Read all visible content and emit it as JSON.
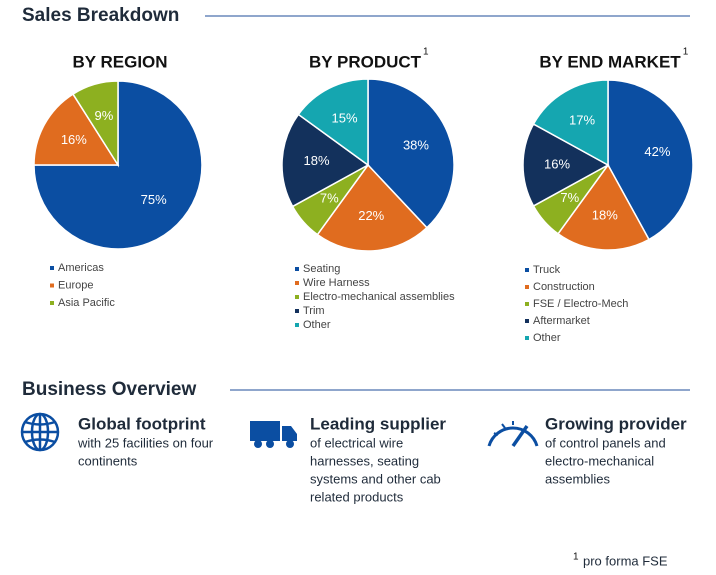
{
  "header": {
    "title": "Sales Breakdown"
  },
  "chart_data": [
    {
      "type": "pie",
      "title": "BY REGION",
      "categories": [
        "Americas",
        "Europe",
        "Asia Pacific"
      ],
      "values": [
        75,
        16,
        9
      ],
      "value_labels": [
        "75%",
        "16%",
        "9%"
      ],
      "colors": [
        "#0b4ea2",
        "#e06c1f",
        "#8db020"
      ]
    },
    {
      "type": "pie",
      "title": "BY PRODUCT",
      "title_note": "1",
      "categories": [
        "Seating",
        "Wire Harness",
        "Electro-mechanical assemblies",
        "Trim",
        "Other"
      ],
      "values": [
        38,
        22,
        7,
        18,
        15
      ],
      "value_labels": [
        "38%",
        "22%",
        "7%",
        "18%",
        "15%"
      ],
      "colors": [
        "#0b4ea2",
        "#e06c1f",
        "#8db020",
        "#13315c",
        "#15a6b0"
      ]
    },
    {
      "type": "pie",
      "title": "BY END MARKET",
      "title_note": "1",
      "categories": [
        "Truck",
        "Construction",
        "FSE / Electro-Mech",
        "Aftermarket",
        "Other"
      ],
      "values": [
        42,
        18,
        7,
        16,
        17
      ],
      "value_labels": [
        "42%",
        "18%",
        "7%",
        "16%",
        "17%"
      ],
      "colors": [
        "#0b4ea2",
        "#e06c1f",
        "#8db020",
        "#13315c",
        "#15a6b0"
      ]
    }
  ],
  "overview": {
    "title": "Business Overview",
    "items": [
      {
        "heading": "Global footprint",
        "lines": [
          "with 25 facilities on four",
          "continents"
        ]
      },
      {
        "heading": "Leading supplier",
        "lines": [
          "of electrical wire",
          "harnesses, seating",
          "systems and other cab",
          "related products"
        ]
      },
      {
        "heading": "Growing provider",
        "lines": [
          "of control panels and",
          "electro-mechanical",
          "assemblies"
        ]
      }
    ]
  },
  "footnote": {
    "mark": "1",
    "text": "pro forma FSE"
  }
}
